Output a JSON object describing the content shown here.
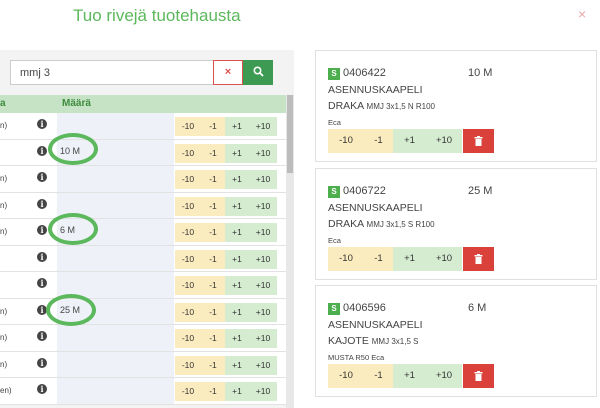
{
  "modal": {
    "title": "Tuo rivejä tuotehausta",
    "close": "×"
  },
  "search": {
    "value": "mmj 3",
    "clear_label": "×"
  },
  "table": {
    "col_a": "a",
    "col_qty": "Määrä",
    "rows": [
      {
        "name": "n)",
        "qty": ""
      },
      {
        "name": "",
        "qty": "10 M"
      },
      {
        "name": "n)",
        "qty": ""
      },
      {
        "name": "n)",
        "qty": ""
      },
      {
        "name": "n)",
        "qty": "6 M"
      },
      {
        "name": "",
        "qty": ""
      },
      {
        "name": "",
        "qty": ""
      },
      {
        "name": "n)",
        "qty": "25 M"
      },
      {
        "name": "n)",
        "qty": ""
      },
      {
        "name": "n)",
        "qty": ""
      },
      {
        "name": "en)",
        "qty": ""
      }
    ],
    "buttons": {
      "minus10": "-10",
      "minus1": "-1",
      "plus1": "+1",
      "plus10": "+10"
    },
    "info_icon": "info-icon"
  },
  "cards": [
    {
      "badge": "S",
      "code": "0406422",
      "amount": "10 M",
      "line1": "ASENNUSKAAPELI",
      "line2_brand": "DRAKA",
      "line2_rest": "MMJ 3x1,5 N R100",
      "sub": "Eca"
    },
    {
      "badge": "S",
      "code": "0406722",
      "amount": "25 M",
      "line1": "ASENNUSKAAPELI",
      "line2_brand": "DRAKA",
      "line2_rest": "MMJ 3x1,5 S R100",
      "sub": "Eca"
    },
    {
      "badge": "S",
      "code": "0406596",
      "amount": "6 M",
      "line1": "ASENNUSKAAPELI",
      "line2_brand": "KAJOTE",
      "line2_rest": "MMJ 3x1,5 S",
      "sub": "MUSTA R50 Eca"
    }
  ],
  "card_buttons": {
    "minus10": "-10",
    "minus1": "-1",
    "plus1": "+1",
    "plus10": "+10"
  },
  "colors": {
    "accent_green": "#5cb85c",
    "delete_red": "#d9413a",
    "minus_bg": "#fbecc0",
    "plus_bg": "#d5ecd1"
  }
}
